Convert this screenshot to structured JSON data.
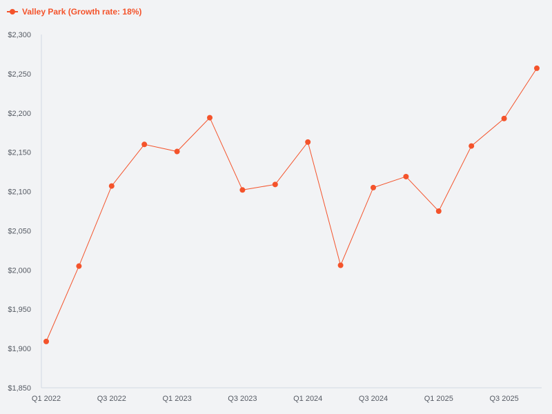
{
  "colors": {
    "series": "#f4532b",
    "axis": "#d3d8e2",
    "tick_text": "#555a63",
    "background": "#f2f3f5"
  },
  "legend": {
    "label": "Valley Park (Growth rate: 18%)",
    "icon": "line-with-circle-marker-icon"
  },
  "chart_data": {
    "type": "line",
    "title": "",
    "xlabel": "",
    "ylabel": "",
    "categories": [
      "Q1 2022",
      "Q2 2022",
      "Q3 2022",
      "Q4 2022",
      "Q1 2023",
      "Q2 2023",
      "Q3 2023",
      "Q4 2023",
      "Q1 2024",
      "Q2 2024",
      "Q3 2024",
      "Q4 2024",
      "Q1 2025",
      "Q2 2025",
      "Q3 2025",
      "Q4 2025"
    ],
    "x_tick_labels": [
      "Q1 2022",
      "Q3 2022",
      "Q1 2023",
      "Q3 2023",
      "Q1 2024",
      "Q3 2024",
      "Q1 2025",
      "Q3 2025"
    ],
    "series": [
      {
        "name": "Valley Park (Growth rate: 18%)",
        "values": [
          1909,
          2005,
          2107,
          2160,
          2151,
          2194,
          2102,
          2109,
          2163,
          2006,
          2105,
          2119,
          2075,
          2158,
          2193,
          2257
        ]
      }
    ],
    "ylim": [
      1850,
      2300
    ],
    "y_ticks": [
      1850,
      1900,
      1950,
      2000,
      2050,
      2100,
      2150,
      2200,
      2250,
      2300
    ],
    "y_tick_labels": [
      "$1,850",
      "$1,900",
      "$1,950",
      "$2,000",
      "$2,050",
      "$2,100",
      "$2,150",
      "$2,200",
      "$2,250",
      "$2,300"
    ],
    "grid": false,
    "legend_position": "top-left"
  }
}
